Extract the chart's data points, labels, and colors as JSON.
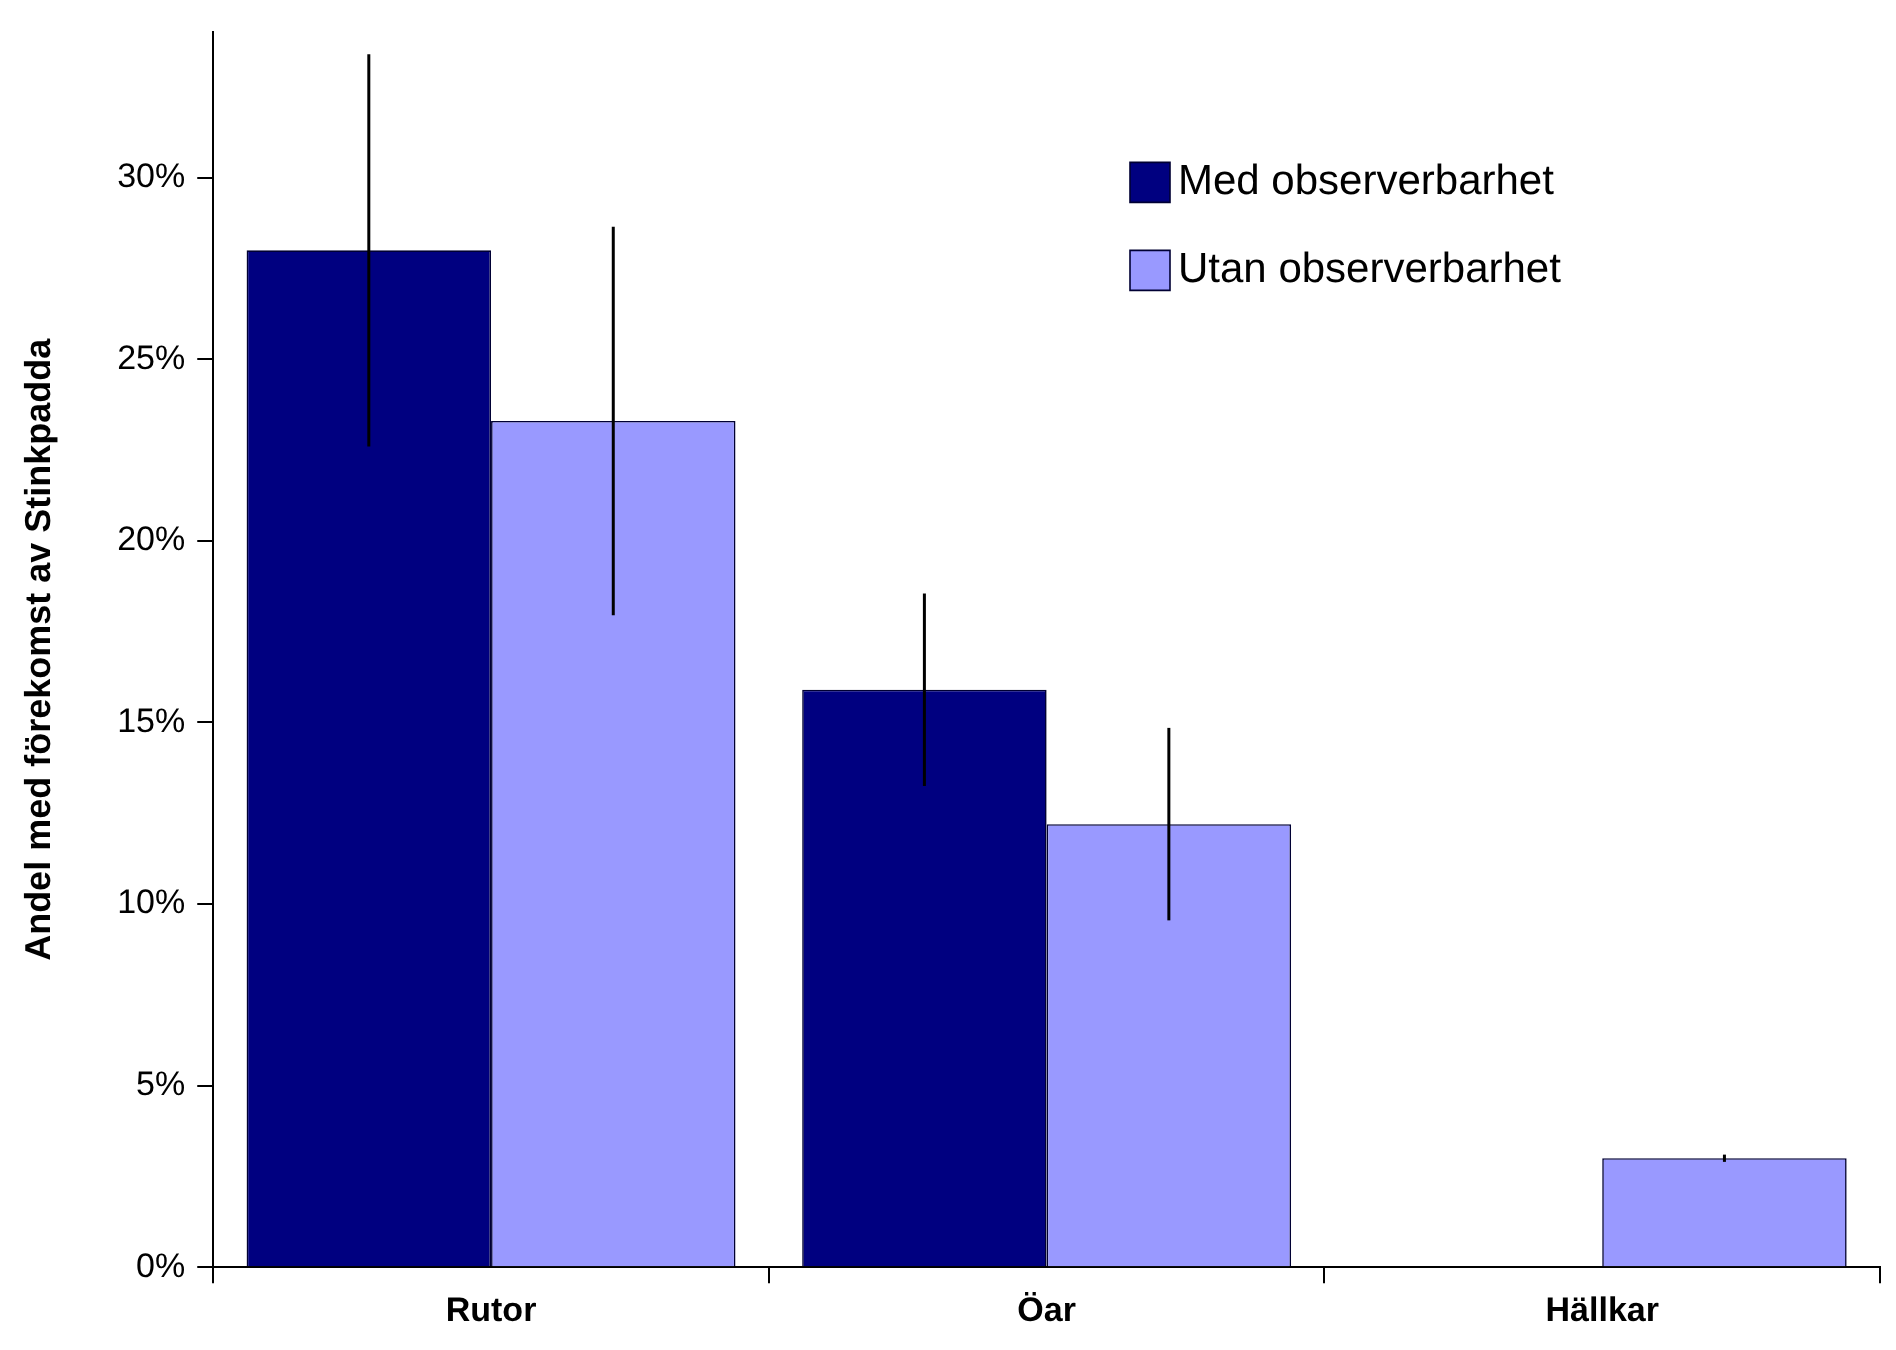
{
  "chart_data": {
    "type": "bar",
    "ylabel": "Andel med förekomst av Stinkpadda",
    "categories": [
      "Rutor",
      "Öar",
      "Hällkar"
    ],
    "series": [
      {
        "name": "Med observerbarhet",
        "color": "#000080",
        "values": [
          28.0,
          15.9,
          0
        ],
        "errors": [
          5.4,
          2.65,
          null
        ]
      },
      {
        "name": "Utan observerbarhet",
        "color": "#9999ff",
        "values": [
          23.3,
          12.2,
          3.0
        ],
        "errors": [
          5.35,
          2.65,
          0.1
        ]
      }
    ],
    "ylim": [
      0,
      34
    ],
    "yticks": [
      {
        "value": 0,
        "label": "0%"
      },
      {
        "value": 5,
        "label": "5%"
      },
      {
        "value": 10,
        "label": "10%"
      },
      {
        "value": 15,
        "label": "15%"
      },
      {
        "value": 20,
        "label": "20%"
      },
      {
        "value": 25,
        "label": "25%"
      },
      {
        "value": 30,
        "label": "30%"
      }
    ],
    "grid": false,
    "legend": "top right"
  }
}
